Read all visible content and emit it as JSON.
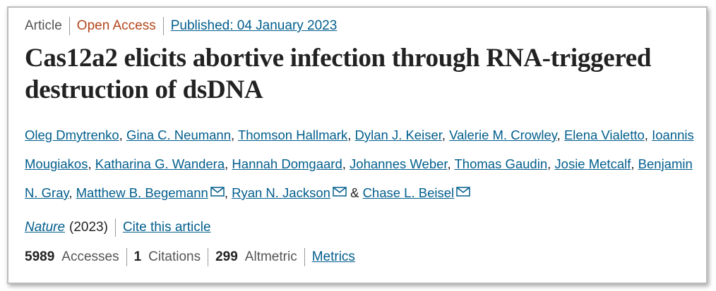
{
  "header": {
    "article_type": "Article",
    "access": "Open Access",
    "published": "Published: 04 January 2023"
  },
  "title": "Cas12a2 elicits abortive infection through RNA-triggered destruction of dsDNA",
  "authors": {
    "separator": ",",
    "conjunction": "&",
    "list": [
      {
        "name": "Oleg Dmytrenko"
      },
      {
        "name": "Gina C. Neumann"
      },
      {
        "name": "Thomson Hallmark"
      },
      {
        "name": "Dylan J. Keiser"
      },
      {
        "name": "Valerie M. Crowley"
      },
      {
        "name": "Elena Vialetto"
      },
      {
        "name": "Ioannis Mougiakos"
      },
      {
        "name": "Katharina G. Wandera"
      },
      {
        "name": "Hannah Domgaard"
      },
      {
        "name": "Johannes Weber"
      },
      {
        "name": "Thomas Gaudin"
      },
      {
        "name": "Josie Metcalf"
      },
      {
        "name": "Benjamin N. Gray"
      },
      {
        "name": "Matthew B. Begemann",
        "mail": true
      },
      {
        "name": "Ryan N. Jackson",
        "mail": true
      },
      {
        "name": "Chase L. Beisel",
        "mail": true
      }
    ]
  },
  "citation": {
    "journal": "Nature",
    "year": "(2023)",
    "cite": "Cite this article"
  },
  "metrics": {
    "items": [
      {
        "value": 5989,
        "label": "Accesses"
      },
      {
        "value": 1,
        "label": "Citations"
      },
      {
        "value": 299,
        "label": "Altmetric"
      }
    ],
    "link": "Metrics"
  }
}
